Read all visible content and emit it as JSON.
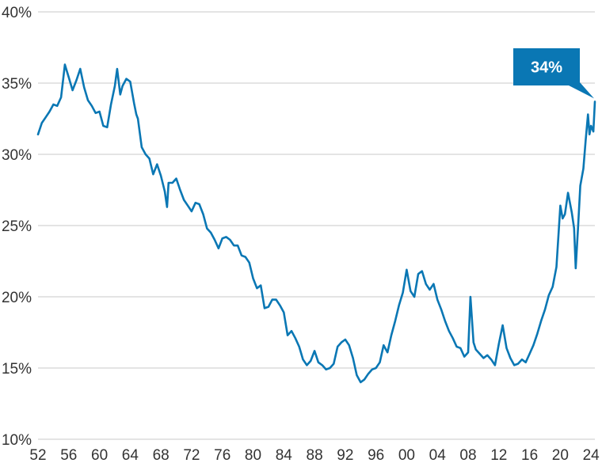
{
  "colors": {
    "line": "#0a77b4",
    "grid": "#d4d4d4",
    "callout": "#0a77b4",
    "text": "#333333"
  },
  "chart_data": {
    "type": "line",
    "title": "",
    "xlabel": "",
    "ylabel": "",
    "ylim": [
      10,
      40
    ],
    "xlim": [
      1952,
      2024.5
    ],
    "grid": "horizontal",
    "y_ticks": [
      "10%",
      "15%",
      "20%",
      "25%",
      "30%",
      "35%",
      "40%"
    ],
    "y_tick_values": [
      10,
      15,
      20,
      25,
      30,
      35,
      40
    ],
    "x_ticks": [
      "52",
      "56",
      "60",
      "64",
      "68",
      "72",
      "76",
      "80",
      "84",
      "88",
      "92",
      "96",
      "00",
      "04",
      "08",
      "12",
      "16",
      "20",
      "24"
    ],
    "x_tick_values": [
      1952,
      1956,
      1960,
      1964,
      1968,
      1972,
      1976,
      1980,
      1984,
      1988,
      1992,
      1996,
      2000,
      2004,
      2008,
      2012,
      2016,
      2020,
      2024
    ],
    "annotation": {
      "text": "34%",
      "x": 2024.5,
      "y": 33.7
    },
    "series": [
      {
        "values": [
          [
            1952.0,
            31.4
          ],
          [
            1952.5,
            32.2
          ],
          [
            1953.0,
            32.6
          ],
          [
            1953.5,
            33.0
          ],
          [
            1954.0,
            33.5
          ],
          [
            1954.5,
            33.4
          ],
          [
            1955.0,
            34.0
          ],
          [
            1955.5,
            36.3
          ],
          [
            1956.0,
            35.4
          ],
          [
            1956.5,
            34.5
          ],
          [
            1957.0,
            35.2
          ],
          [
            1957.5,
            36.0
          ],
          [
            1958.0,
            34.7
          ],
          [
            1958.5,
            33.8
          ],
          [
            1959.0,
            33.4
          ],
          [
            1959.5,
            32.9
          ],
          [
            1960.0,
            33.0
          ],
          [
            1960.5,
            32.0
          ],
          [
            1961.0,
            31.9
          ],
          [
            1961.5,
            33.5
          ],
          [
            1962.0,
            34.8
          ],
          [
            1962.3,
            36.0
          ],
          [
            1962.7,
            34.2
          ],
          [
            1963.0,
            34.8
          ],
          [
            1963.5,
            35.3
          ],
          [
            1964.0,
            35.1
          ],
          [
            1964.5,
            33.6
          ],
          [
            1964.8,
            32.8
          ],
          [
            1965.0,
            32.5
          ],
          [
            1965.5,
            30.5
          ],
          [
            1966.0,
            30.0
          ],
          [
            1966.5,
            29.7
          ],
          [
            1967.0,
            28.6
          ],
          [
            1967.5,
            29.3
          ],
          [
            1968.0,
            28.5
          ],
          [
            1968.5,
            27.4
          ],
          [
            1968.8,
            26.3
          ],
          [
            1969.0,
            28.0
          ],
          [
            1969.5,
            28.0
          ],
          [
            1970.0,
            28.3
          ],
          [
            1970.5,
            27.5
          ],
          [
            1971.0,
            26.8
          ],
          [
            1971.5,
            26.4
          ],
          [
            1972.0,
            26.0
          ],
          [
            1972.5,
            26.6
          ],
          [
            1973.0,
            26.5
          ],
          [
            1973.5,
            25.8
          ],
          [
            1974.0,
            24.8
          ],
          [
            1974.5,
            24.5
          ],
          [
            1975.0,
            24.0
          ],
          [
            1975.5,
            23.4
          ],
          [
            1976.0,
            24.1
          ],
          [
            1976.5,
            24.2
          ],
          [
            1977.0,
            24.0
          ],
          [
            1977.5,
            23.6
          ],
          [
            1978.0,
            23.6
          ],
          [
            1978.5,
            22.9
          ],
          [
            1979.0,
            22.8
          ],
          [
            1979.5,
            22.4
          ],
          [
            1980.0,
            21.3
          ],
          [
            1980.5,
            20.6
          ],
          [
            1981.0,
            20.8
          ],
          [
            1981.5,
            19.2
          ],
          [
            1982.0,
            19.3
          ],
          [
            1982.5,
            19.8
          ],
          [
            1983.0,
            19.8
          ],
          [
            1983.5,
            19.4
          ],
          [
            1984.0,
            18.9
          ],
          [
            1984.5,
            17.3
          ],
          [
            1985.0,
            17.6
          ],
          [
            1985.5,
            17.1
          ],
          [
            1986.0,
            16.5
          ],
          [
            1986.5,
            15.6
          ],
          [
            1987.0,
            15.2
          ],
          [
            1987.5,
            15.5
          ],
          [
            1988.0,
            16.2
          ],
          [
            1988.5,
            15.4
          ],
          [
            1989.0,
            15.2
          ],
          [
            1989.5,
            14.9
          ],
          [
            1990.0,
            15.0
          ],
          [
            1990.5,
            15.3
          ],
          [
            1991.0,
            16.5
          ],
          [
            1991.5,
            16.8
          ],
          [
            1992.0,
            17.0
          ],
          [
            1992.5,
            16.6
          ],
          [
            1993.0,
            15.7
          ],
          [
            1993.5,
            14.5
          ],
          [
            1994.0,
            14.0
          ],
          [
            1994.5,
            14.2
          ],
          [
            1995.0,
            14.6
          ],
          [
            1995.5,
            14.9
          ],
          [
            1996.0,
            15.0
          ],
          [
            1996.5,
            15.4
          ],
          [
            1997.0,
            16.6
          ],
          [
            1997.5,
            16.1
          ],
          [
            1998.0,
            17.3
          ],
          [
            1998.5,
            18.3
          ],
          [
            1999.0,
            19.4
          ],
          [
            1999.5,
            20.3
          ],
          [
            2000.0,
            21.9
          ],
          [
            2000.5,
            20.4
          ],
          [
            2001.0,
            20.0
          ],
          [
            2001.5,
            21.6
          ],
          [
            2002.0,
            21.8
          ],
          [
            2002.5,
            20.9
          ],
          [
            2003.0,
            20.5
          ],
          [
            2003.5,
            20.9
          ],
          [
            2004.0,
            19.8
          ],
          [
            2004.5,
            19.1
          ],
          [
            2005.0,
            18.3
          ],
          [
            2005.5,
            17.6
          ],
          [
            2006.0,
            17.1
          ],
          [
            2006.5,
            16.5
          ],
          [
            2007.0,
            16.4
          ],
          [
            2007.5,
            15.8
          ],
          [
            2008.0,
            16.1
          ],
          [
            2008.3,
            20.0
          ],
          [
            2008.7,
            16.8
          ],
          [
            2009.0,
            16.3
          ],
          [
            2009.5,
            16.0
          ],
          [
            2010.0,
            15.7
          ],
          [
            2010.5,
            15.9
          ],
          [
            2011.0,
            15.6
          ],
          [
            2011.5,
            15.2
          ],
          [
            2012.0,
            16.7
          ],
          [
            2012.5,
            18.0
          ],
          [
            2013.0,
            16.4
          ],
          [
            2013.5,
            15.7
          ],
          [
            2014.0,
            15.2
          ],
          [
            2014.5,
            15.3
          ],
          [
            2015.0,
            15.6
          ],
          [
            2015.5,
            15.4
          ],
          [
            2016.0,
            16.0
          ],
          [
            2016.5,
            16.6
          ],
          [
            2017.0,
            17.4
          ],
          [
            2017.5,
            18.3
          ],
          [
            2018.0,
            19.1
          ],
          [
            2018.5,
            20.1
          ],
          [
            2019.0,
            20.7
          ],
          [
            2019.5,
            22.1
          ],
          [
            2020.0,
            26.4
          ],
          [
            2020.3,
            25.5
          ],
          [
            2020.6,
            25.8
          ],
          [
            2021.0,
            27.3
          ],
          [
            2021.5,
            25.9
          ],
          [
            2021.8,
            24.8
          ],
          [
            2022.0,
            22.0
          ],
          [
            2022.3,
            24.8
          ],
          [
            2022.6,
            27.8
          ],
          [
            2023.0,
            29.0
          ],
          [
            2023.3,
            31.0
          ],
          [
            2023.6,
            32.8
          ],
          [
            2023.8,
            31.4
          ],
          [
            2024.0,
            32.0
          ],
          [
            2024.3,
            31.6
          ],
          [
            2024.5,
            33.7
          ]
        ]
      }
    ]
  }
}
